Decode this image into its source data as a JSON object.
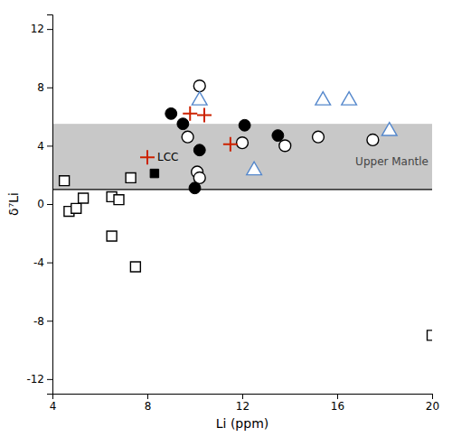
{
  "chart_data": {
    "type": "scatter",
    "xlabel": "Li (ppm)",
    "ylabel": "δ⁷Li",
    "xlim": [
      4,
      20
    ],
    "ylim": [
      -13,
      13
    ],
    "xticks": [
      4,
      8,
      12,
      16,
      20
    ],
    "yticks": [
      -12,
      -8,
      -4,
      0,
      4,
      8,
      12
    ],
    "background_color": "#ffffff",
    "band": {
      "y0": 1.0,
      "y1": 5.5,
      "color": "#c8c8c8",
      "label": "Upper Mantle"
    },
    "series": [
      {
        "marker": "square-open",
        "color": "#000000",
        "x": [
          4.5,
          4.7,
          5.0,
          5.3,
          6.5,
          6.8,
          7.3,
          6.5,
          7.5,
          20.0
        ],
        "values": [
          1.6,
          -0.5,
          -0.3,
          0.4,
          0.5,
          0.3,
          1.8,
          -2.2,
          -4.3,
          -9.0
        ]
      },
      {
        "marker": "square",
        "color": "#000000",
        "x": [
          8.3
        ],
        "values": [
          2.1
        ]
      },
      {
        "marker": "circle-open",
        "color": "#000000",
        "x": [
          10.2,
          9.7,
          10.1,
          10.2,
          12.0,
          13.8,
          15.2,
          17.5
        ],
        "values": [
          8.1,
          4.6,
          2.2,
          1.8,
          4.2,
          4.0,
          4.6,
          4.4
        ]
      },
      {
        "marker": "circle",
        "color": "#000000",
        "x": [
          9.0,
          9.5,
          12.1,
          13.5,
          10.2,
          10.0
        ],
        "values": [
          6.2,
          5.5,
          5.4,
          4.7,
          3.7,
          1.1
        ]
      },
      {
        "marker": "triangle-open",
        "color": "#5588cc",
        "x": [
          10.2,
          12.5,
          15.4,
          16.5,
          18.2
        ],
        "values": [
          7.1,
          2.3,
          7.1,
          7.1,
          5.0
        ]
      },
      {
        "marker": "cross",
        "color": "#cc2200",
        "x": [
          9.8,
          10.4,
          11.5
        ],
        "values": [
          6.2,
          6.1,
          4.1
        ]
      },
      {
        "marker": "cross",
        "color": "#cc2200",
        "x": [
          8.0
        ],
        "values": [
          3.2
        ],
        "labels": [
          "LCC"
        ]
      }
    ]
  }
}
